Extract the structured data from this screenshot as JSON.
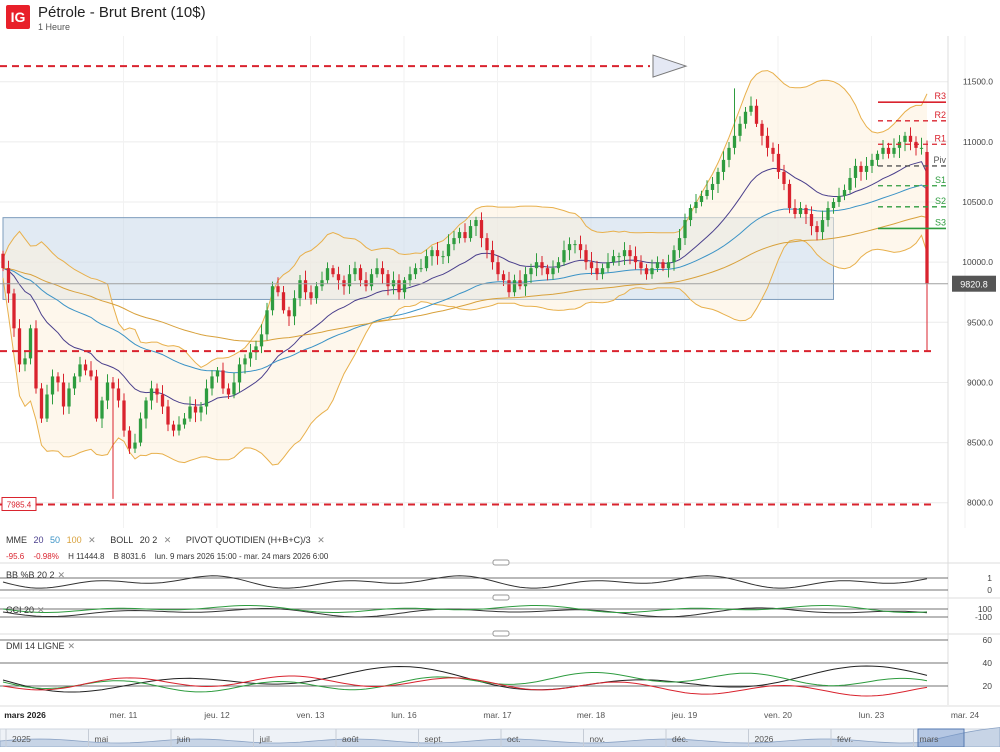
{
  "header": {
    "logo": "IG",
    "title": "Pétrole - Brut Brent (10$)",
    "subtitle": "1 Heure"
  },
  "colors": {
    "up": "#2e9c3f",
    "down": "#d9232e",
    "mme20": "#4a3f8c",
    "mme50": "#3b93c6",
    "mme100": "#d8a13c",
    "boll": "#e8b04c",
    "zone": "#c9d9e9",
    "pivot_r": "#d9232e",
    "pivot_s": "#2e9c3f",
    "pivot_p": "#555555"
  },
  "legend": {
    "mme_label": "MME",
    "mme_20": "20",
    "mme_50": "50",
    "mme_100": "100",
    "boll_label": "BOLL",
    "boll_params": "20  2",
    "pivot_label": "PIVOT  QUOTIDIEN  (H+B+C)/3",
    "close_icon": "close-icon"
  },
  "ohlc": {
    "change": "-95.6",
    "change_pct": "-0.98%",
    "high": "H 11444.8",
    "low": "B 8031.6",
    "range": "lun. 9 mars 2026 15:00 - mar. 24 mars 2026 6:00"
  },
  "price_labels": {
    "current": "9820.8",
    "low_marker": "7985.4"
  },
  "pivots": [
    {
      "name": "R3",
      "value": 11330
    },
    {
      "name": "R2",
      "value": 11175
    },
    {
      "name": "R1",
      "value": 10980
    },
    {
      "name": "Piv",
      "value": 10800
    },
    {
      "name": "S1",
      "value": 10635
    },
    {
      "name": "S2",
      "value": 10460
    },
    {
      "name": "S3",
      "value": 10280
    }
  ],
  "panels": {
    "bbpct": {
      "label": "BB %B  20  2",
      "ticks": [
        "1",
        "0"
      ]
    },
    "cci": {
      "label": "CCI  20",
      "ticks": [
        "100",
        "-100"
      ]
    },
    "dmi": {
      "label": "DMI  14  LIGNE",
      "ticks": [
        "60",
        "40",
        "20"
      ]
    }
  },
  "nav": {
    "dates": [
      "mars 2026",
      "mer. 11",
      "jeu. 12",
      "ven. 13",
      "lun. 16",
      "mar. 17",
      "mer. 18",
      "jeu. 19",
      "ven. 20",
      "lun. 23",
      "mar. 24"
    ],
    "months": [
      "2025",
      "mai",
      "juin",
      "juil.",
      "août",
      "sept.",
      "oct.",
      "nov.",
      "déc.",
      "2026",
      "févr.",
      "mars"
    ]
  },
  "chart_data": {
    "type": "candlestick",
    "title": "Pétrole - Brut Brent (10$)",
    "timeframe": "1 Heure",
    "y_ticks": [
      11500,
      11000,
      10500,
      10000,
      9500,
      9000,
      8500,
      8000
    ],
    "y_tick_labels": [
      "11500.0",
      "11000.0",
      "10500.0",
      "10000.0",
      "9500.0",
      "9000.0",
      "8500.0",
      "8000.0"
    ],
    "ylim": [
      7790,
      11880
    ],
    "last_price": 9820.8,
    "high": 11444.8,
    "low": 8031.6,
    "horizontal_levels": [
      {
        "value": 11630,
        "style": "dashed",
        "color": "#d9232e",
        "arrow": true
      },
      {
        "value": 9260,
        "style": "dashed",
        "color": "#d9232e"
      },
      {
        "value": 7985.4,
        "style": "dashed",
        "color": "#d9232e"
      }
    ],
    "zone": {
      "top": 10370,
      "bottom": 9690,
      "start_index": 0,
      "end_index": 151
    },
    "closes": [
      9950,
      9740,
      9450,
      9150,
      9200,
      9450,
      8950,
      8700,
      8900,
      9050,
      9000,
      8800,
      8950,
      9050,
      9150,
      9100,
      9050,
      8700,
      8850,
      9000,
      8950,
      8850,
      8600,
      8450,
      8500,
      8700,
      8850,
      8950,
      8900,
      8800,
      8650,
      8600,
      8650,
      8700,
      8800,
      8750,
      8800,
      8950,
      9050,
      9100,
      8950,
      8900,
      9000,
      9150,
      9200,
      9250,
      9300,
      9400,
      9600,
      9800,
      9750,
      9600,
      9550,
      9700,
      9850,
      9750,
      9700,
      9800,
      9850,
      9950,
      9900,
      9850,
      9800,
      9900,
      9950,
      9850,
      9800,
      9900,
      9950,
      9900,
      9800,
      9850,
      9750,
      9850,
      9900,
      9950,
      9950,
      10050,
      10100,
      10050,
      10050,
      10150,
      10200,
      10250,
      10200,
      10300,
      10350,
      10200,
      10100,
      10000,
      9900,
      9850,
      9750,
      9850,
      9800,
      9900,
      9950,
      10000,
      9950,
      9900,
      9950,
      10000,
      10100,
      10150,
      10150,
      10100,
      10000,
      9950,
      9900,
      9950,
      10000,
      10050,
      10050,
      10100,
      10050,
      10000,
      9950,
      9900,
      9950,
      10000,
      9950,
      10000,
      10100,
      10200,
      10350,
      10450,
      10500,
      10550,
      10600,
      10650,
      10750,
      10850,
      10950,
      11050,
      11150,
      11250,
      11300,
      11150,
      11050,
      10950,
      10900,
      10750,
      10650,
      10450,
      10400,
      10450,
      10400,
      10300,
      10250,
      10350,
      10450,
      10500,
      10550,
      10600,
      10700,
      10800,
      10750,
      10800,
      10850,
      10900,
      10950,
      10900,
      10950,
      11000,
      11050,
      11000,
      10950,
      10950,
      9820.8
    ]
  }
}
